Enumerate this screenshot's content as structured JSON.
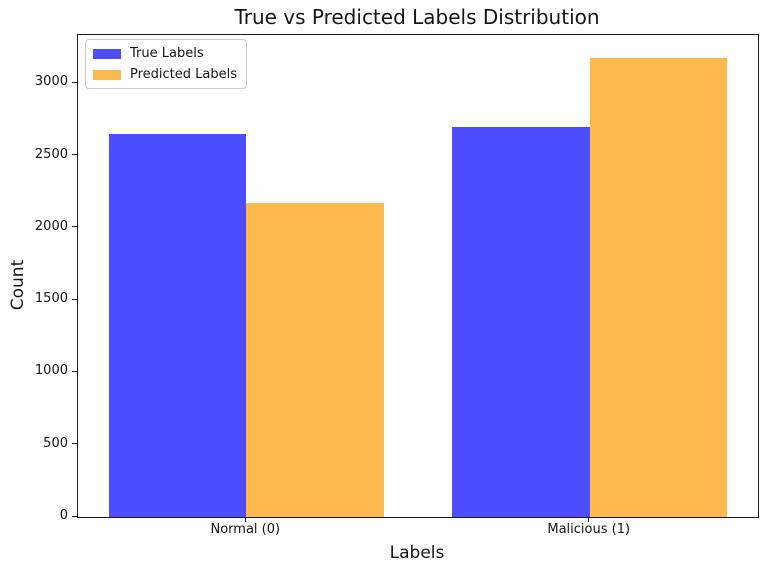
{
  "chart_data": {
    "type": "bar",
    "title": "True vs Predicted Labels Distribution",
    "xlabel": "Labels",
    "ylabel": "Count",
    "categories": [
      "Normal (0)",
      "Malicious (1)"
    ],
    "series": [
      {
        "name": "True Labels",
        "color": "#4d4dff",
        "values": [
          2650,
          2700
        ]
      },
      {
        "name": "Predicted Labels",
        "color": "#fcba4e",
        "values": [
          2175,
          3175
        ]
      }
    ],
    "ylim": [
      0,
      3334
    ],
    "yticks": [
      0,
      500,
      1000,
      1500,
      2000,
      2500,
      3000
    ],
    "xlim": [
      -0.49,
      1.49
    ],
    "bar_width": 0.4,
    "grid": false,
    "legend_position": "upper left",
    "background_color": "#ffffff",
    "spine_color": "#1a1a1a"
  }
}
